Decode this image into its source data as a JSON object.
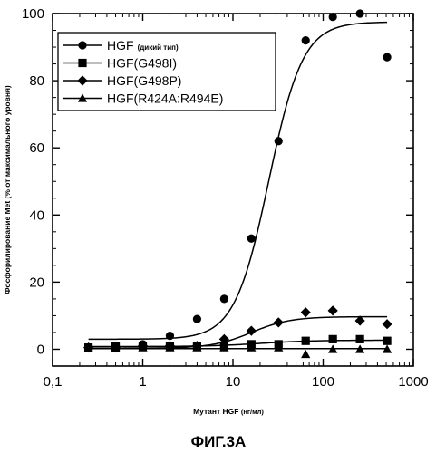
{
  "figure_caption": "ФИГ.3A",
  "chart_data": {
    "type": "scatter",
    "title": "",
    "xlabel": "Мутант HGF",
    "xlabel_unit": "(нг/мл)",
    "ylabel": "Фосфорилирование Met (% от максимального уровня)",
    "x_scale": "log",
    "xlim": [
      0.1,
      1000
    ],
    "ylim": [
      -5,
      100
    ],
    "x_ticks": [
      0.1,
      1,
      10,
      100,
      1000
    ],
    "x_tick_labels": [
      "0,1",
      "1",
      "10",
      "100",
      "1000"
    ],
    "y_ticks": [
      0,
      20,
      40,
      60,
      80,
      100
    ],
    "y_tick_labels": [
      "0",
      "20",
      "40",
      "60",
      "80",
      "100"
    ],
    "grid": false,
    "legend_position": "top-left",
    "series": [
      {
        "name": "HGF",
        "name_suffix": "(дикий тип)",
        "marker": "circle",
        "x": [
          0.25,
          0.5,
          1,
          2,
          4,
          8,
          16,
          32,
          64,
          128,
          256,
          512
        ],
        "y": [
          0.5,
          1,
          1.5,
          4,
          9,
          15,
          33,
          62,
          92,
          99,
          100,
          87
        ],
        "fit": {
          "bottom": 3,
          "top": 97.5,
          "ec50": 25,
          "hill": 2.3
        }
      },
      {
        "name": "HGF(G498I)",
        "name_suffix": "",
        "marker": "square",
        "x": [
          0.25,
          0.5,
          1,
          2,
          4,
          8,
          16,
          32,
          64,
          128,
          256,
          512
        ],
        "y": [
          0.5,
          0.8,
          1,
          1,
          1,
          1,
          1.5,
          1.5,
          2.5,
          3,
          3,
          2.5
        ],
        "fit": {
          "bottom": 0.8,
          "top": 2.7,
          "ec50": 20,
          "hill": 1.5
        }
      },
      {
        "name": "HGF(G498P)",
        "name_suffix": "",
        "marker": "diamond",
        "x": [
          0.25,
          0.5,
          1,
          2,
          4,
          8,
          16,
          32,
          64,
          128,
          256,
          512
        ],
        "y": [
          0.5,
          0.5,
          1,
          1,
          1,
          3,
          5.5,
          8,
          11,
          11.5,
          8.5,
          7.5
        ],
        "fit": {
          "bottom": 0.3,
          "top": 9.7,
          "ec50": 16,
          "hill": 2.0
        }
      },
      {
        "name": "HGF(R424A:R494E)",
        "name_suffix": "",
        "marker": "triangle",
        "x": [
          0.25,
          0.5,
          1,
          2,
          4,
          8,
          16,
          32,
          64,
          128,
          256,
          512
        ],
        "y": [
          0.3,
          0.3,
          0.5,
          0.5,
          0.5,
          0.5,
          0.5,
          0.5,
          -1.5,
          0,
          0,
          0
        ],
        "fit": {
          "bottom": 0.2,
          "top": 0.2,
          "ec50": 20,
          "hill": 1.0
        }
      }
    ]
  }
}
